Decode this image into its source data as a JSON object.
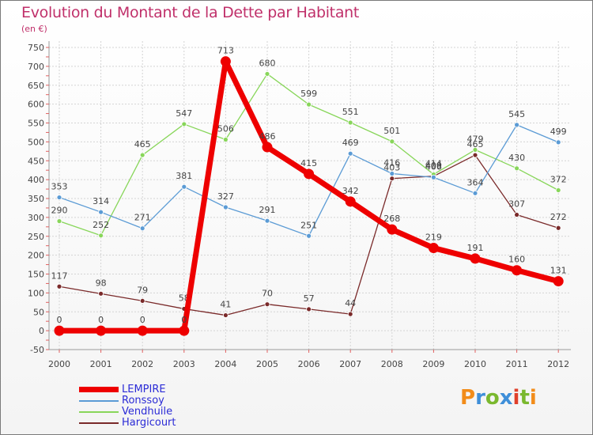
{
  "header": {
    "title": "Evolution du Montant de la Dette par Habitant",
    "unit": "(en €)"
  },
  "logo": {
    "letters": [
      "P",
      "r",
      "o",
      "x",
      "i",
      "t",
      "i"
    ],
    "colors": [
      "#f28c1a",
      "#3f8fd9",
      "#7ab82e",
      "#3f8fd9",
      "#e0402b",
      "#7ab82e",
      "#f28c1a"
    ]
  },
  "chart_data": {
    "type": "line",
    "title": "Evolution du Montant de la Dette par Habitant",
    "ylabel": "(en €)",
    "x": [
      "2000",
      "2001",
      "2002",
      "2003",
      "2004",
      "2005",
      "2006",
      "2007",
      "2008",
      "2009",
      "2010",
      "2011",
      "2012"
    ],
    "ylim": [
      -50,
      750
    ],
    "yticks": [
      -50,
      0,
      50,
      100,
      150,
      200,
      250,
      300,
      350,
      400,
      450,
      500,
      550,
      600,
      650,
      700,
      750
    ],
    "grid": true,
    "legend_position": "bottom-left",
    "series": [
      {
        "name": "Hargicourt",
        "color": "#7a2a2a",
        "values": [
          117,
          98,
          79,
          58,
          41,
          70,
          57,
          44,
          403,
          409,
          465,
          307,
          272
        ],
        "labels": [
          "117",
          "98",
          "79",
          "58",
          "41",
          "70",
          "57",
          "44",
          "403",
          "409",
          "465",
          "307",
          "272"
        ]
      },
      {
        "name": "Vendhuile",
        "color": "#88d65a",
        "values": [
          290,
          252,
          465,
          547,
          506,
          680,
          599,
          551,
          501,
          414,
          479,
          430,
          372
        ],
        "labels": [
          "290",
          "252",
          "465",
          "547",
          "506",
          "680",
          "599",
          "551",
          "501",
          "414",
          "479",
          "430",
          "372"
        ]
      },
      {
        "name": "Ronssoy",
        "color": "#5b9bd5",
        "values": [
          353,
          314,
          271,
          381,
          327,
          291,
          251,
          469,
          416,
          406,
          364,
          545,
          499
        ],
        "labels": [
          "353",
          "314",
          "271",
          "381",
          "327",
          "291",
          "251",
          "469",
          "416",
          "406",
          "364",
          "545",
          "499"
        ]
      },
      {
        "name": "LEMPIRE",
        "color": "#ee0000",
        "values": [
          0,
          0,
          0,
          0,
          713,
          486,
          415,
          342,
          268,
          219,
          191,
          160,
          131
        ],
        "labels": [
          "0",
          "0",
          "0",
          "0",
          "713",
          "486",
          "415",
          "342",
          "268",
          "219",
          "191",
          "160",
          "131"
        ]
      }
    ],
    "legend": [
      "LEMPIRE",
      "Ronssoy",
      "Vendhuile",
      "Hargicourt"
    ]
  }
}
